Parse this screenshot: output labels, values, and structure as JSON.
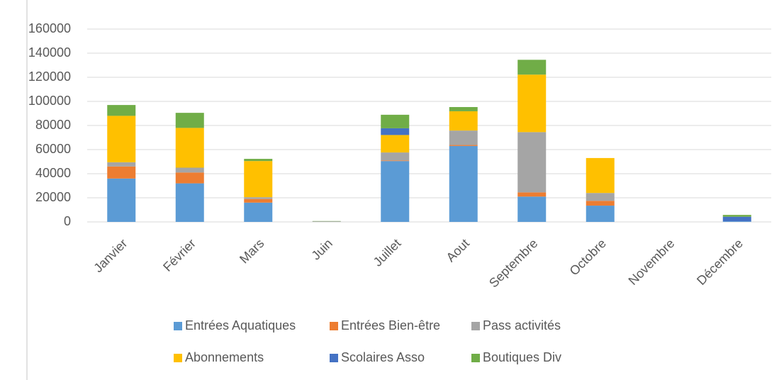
{
  "chart_data": {
    "type": "bar",
    "stacked": true,
    "categories": [
      "Janvier",
      "Février",
      "Mars",
      "Juin",
      "Juillet",
      "Aout",
      "Septembre",
      "Octobre",
      "Novembre",
      "Décembre"
    ],
    "series": [
      {
        "name": "Entrées Aquatiques",
        "color": "#5b9bd5",
        "values": [
          36000,
          32000,
          16000,
          0,
          50500,
          63000,
          21000,
          13500,
          0,
          500
        ]
      },
      {
        "name": "Entrées Bien-être",
        "color": "#ed7d31",
        "values": [
          10000,
          9000,
          3000,
          0,
          500,
          800,
          3500,
          4000,
          0,
          0
        ]
      },
      {
        "name": "Pass activités",
        "color": "#a5a5a5",
        "values": [
          3500,
          4000,
          1500,
          500,
          6600,
          12000,
          50000,
          6500,
          0,
          0
        ]
      },
      {
        "name": "Abonnements",
        "color": "#ffc000",
        "values": [
          38500,
          33000,
          30000,
          0,
          14500,
          16000,
          47700,
          29000,
          0,
          0
        ]
      },
      {
        "name": "Scolaires Asso",
        "color": "#4472c4",
        "values": [
          0,
          0,
          0,
          0,
          5600,
          0,
          0,
          0,
          0,
          3800
        ]
      },
      {
        "name": "Boutiques Div",
        "color": "#70ad47",
        "values": [
          9000,
          12500,
          1800,
          200,
          11200,
          3500,
          12300,
          0,
          0,
          1500
        ]
      }
    ],
    "ylim": [
      0,
      160000
    ],
    "yticks": [
      0,
      20000,
      40000,
      60000,
      80000,
      100000,
      120000,
      140000,
      160000
    ],
    "grid": true
  }
}
